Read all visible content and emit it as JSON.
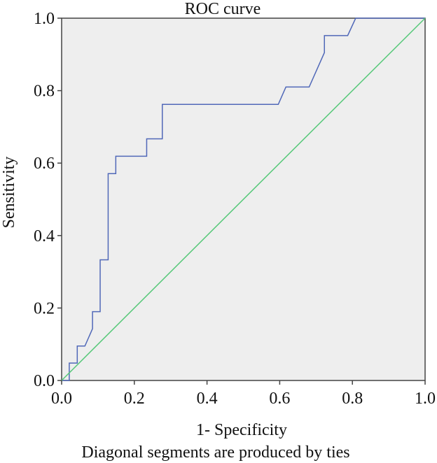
{
  "chart_data": {
    "type": "line",
    "title": "ROC curve",
    "xlabel": "1- Specificity",
    "ylabel": "Sensitivity",
    "footnote": "Diagonal segments are produced by ties",
    "xlim": [
      0,
      1
    ],
    "ylim": [
      0,
      1
    ],
    "x_ticks": [
      "0.0",
      "0.2",
      "0.4",
      "0.6",
      "0.8",
      "1.0"
    ],
    "y_ticks": [
      "0.0",
      "0.2",
      "0.4",
      "0.6",
      "0.8",
      "1.0"
    ],
    "grid": false,
    "series": [
      {
        "color": "#5068b8",
        "points": [
          [
            0,
            0
          ],
          [
            0.021,
            0
          ],
          [
            0.021,
            0.048
          ],
          [
            0.043,
            0.048
          ],
          [
            0.043,
            0.095
          ],
          [
            0.064,
            0.095
          ],
          [
            0.085,
            0.143
          ],
          [
            0.085,
            0.19
          ],
          [
            0.106,
            0.19
          ],
          [
            0.106,
            0.333
          ],
          [
            0.128,
            0.333
          ],
          [
            0.128,
            0.571
          ],
          [
            0.149,
            0.571
          ],
          [
            0.149,
            0.619
          ],
          [
            0.234,
            0.619
          ],
          [
            0.234,
            0.667
          ],
          [
            0.277,
            0.667
          ],
          [
            0.277,
            0.762
          ],
          [
            0.596,
            0.762
          ],
          [
            0.617,
            0.81
          ],
          [
            0.681,
            0.81
          ],
          [
            0.723,
            0.905
          ],
          [
            0.723,
            0.952
          ],
          [
            0.787,
            0.952
          ],
          [
            0.809,
            1.0
          ],
          [
            1.0,
            1.0
          ]
        ]
      },
      {
        "color": "#55c878",
        "points": [
          [
            0,
            0
          ],
          [
            1,
            1
          ]
        ]
      }
    ]
  }
}
